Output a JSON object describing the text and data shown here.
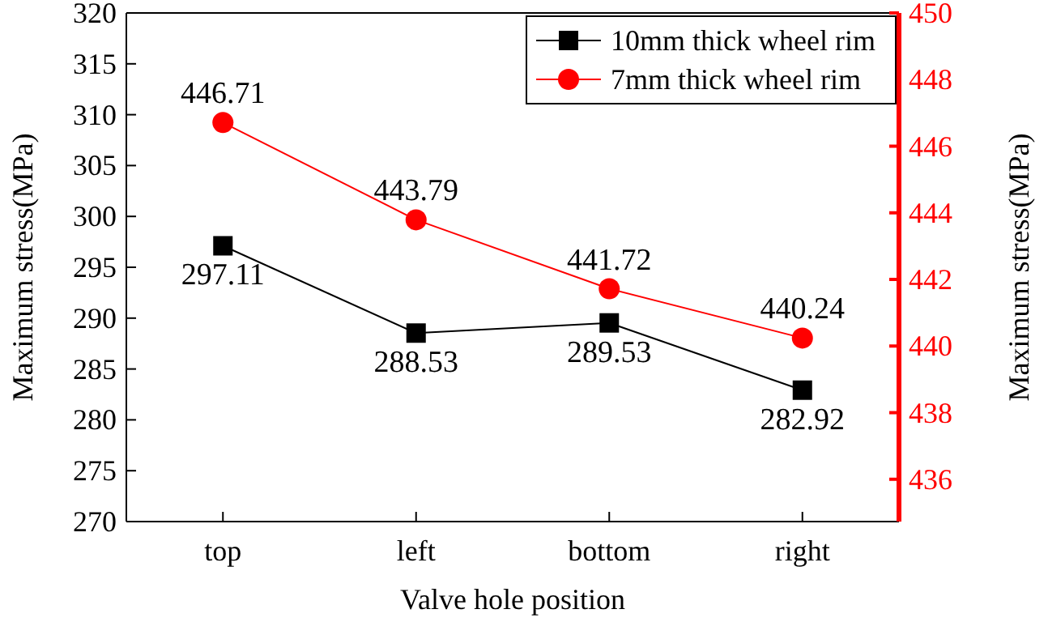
{
  "chart_data": {
    "type": "line",
    "xlabel": "Valve hole position",
    "ylabel": "Maximum stress(MPa)",
    "y2label": "Maximum stress(MPa)",
    "categories": [
      "top",
      "left",
      "bottom",
      "right"
    ],
    "series": [
      {
        "name": "10mm thick wheel rim",
        "color": "#000000",
        "marker": "square",
        "values": [
          297.11,
          288.53,
          289.53,
          282.92
        ]
      },
      {
        "name": "7mm thick wheel rim",
        "color": "#ff0000",
        "marker": "circle",
        "axis": "y2",
        "values": [
          446.71,
          443.79,
          441.72,
          440.24
        ]
      }
    ],
    "ylim": [
      270,
      320
    ],
    "yticks": [
      270,
      275,
      280,
      285,
      290,
      295,
      300,
      305,
      310,
      315,
      320
    ],
    "y2lim": [
      434.73,
      450
    ],
    "y2ticks": [
      436,
      438,
      440,
      442,
      444,
      446,
      448,
      450
    ],
    "data_labels": true,
    "legend": "top right",
    "grid": false
  }
}
